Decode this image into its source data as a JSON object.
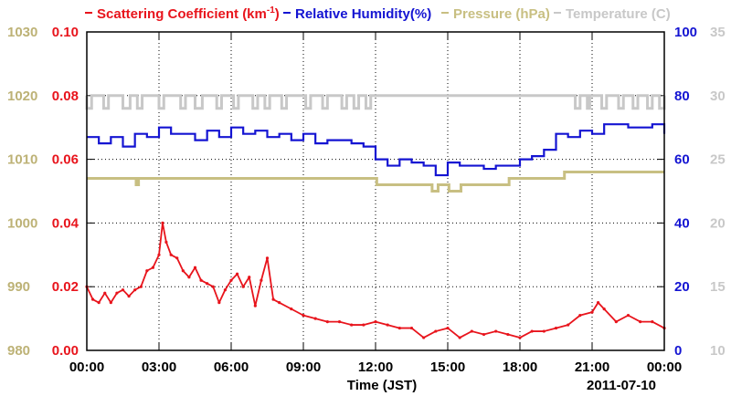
{
  "chart_data": {
    "type": "line",
    "legend": [
      {
        "label_main": "Scattering Coefficient (km",
        "label_sup": "-1",
        "label_end": ")",
        "color": "#e8141c"
      },
      {
        "label_main": "Relative Humidity(%)",
        "color": "#1414d2"
      },
      {
        "label_main": "Pressure (hPa)",
        "color": "#c8bf82"
      },
      {
        "label_main": "Temperature (C)",
        "color": "#c8c8c8"
      }
    ],
    "x_axis": {
      "label": "Time (JST)",
      "date_label": "2011-07-10",
      "range_hours": [
        0,
        24
      ],
      "ticks": [
        "00:00",
        "03:00",
        "06:00",
        "09:00",
        "12:00",
        "15:00",
        "18:00",
        "21:00",
        "00:00"
      ]
    },
    "axes": {
      "pressure": {
        "unit": "hPa",
        "range": [
          980,
          1030
        ],
        "ticks": [
          "980",
          "990",
          "1000",
          "1010",
          "1020",
          "1030"
        ],
        "color": "#bdb276"
      },
      "scattering": {
        "unit": "km-1",
        "range": [
          0,
          0.1
        ],
        "ticks": [
          "0.00",
          "0.02",
          "0.04",
          "0.06",
          "0.08",
          "0.10"
        ],
        "color": "#e8141c"
      },
      "humidity": {
        "unit": "%",
        "range": [
          0,
          100
        ],
        "ticks": [
          "0",
          "20",
          "40",
          "60",
          "80",
          "100"
        ],
        "color": "#1414d2"
      },
      "temperature": {
        "unit": "C",
        "range": [
          10,
          35
        ],
        "ticks": [
          "10",
          "15",
          "20",
          "25",
          "30",
          "35"
        ],
        "color": "#c8c8c8"
      }
    },
    "series": [
      {
        "name": "Scattering Coefficient",
        "axis": "scattering",
        "color": "#e8141c",
        "x": [
          0,
          0.25,
          0.5,
          0.75,
          1.0,
          1.25,
          1.5,
          1.75,
          2.0,
          2.25,
          2.5,
          2.75,
          3.0,
          3.15,
          3.3,
          3.5,
          3.75,
          4.0,
          4.25,
          4.5,
          4.75,
          5.0,
          5.25,
          5.5,
          5.75,
          6.0,
          6.25,
          6.5,
          6.75,
          7.0,
          7.25,
          7.5,
          7.75,
          8.0,
          8.5,
          9.0,
          9.5,
          10.0,
          10.5,
          11.0,
          11.5,
          12.0,
          12.5,
          13.0,
          13.5,
          14.0,
          14.5,
          15.0,
          15.5,
          16.0,
          16.5,
          17.0,
          17.5,
          18.0,
          18.5,
          19.0,
          19.5,
          20.0,
          20.5,
          21.0,
          21.25,
          21.5,
          22.0,
          22.5,
          23.0,
          23.5,
          24.0
        ],
        "values": [
          0.02,
          0.016,
          0.015,
          0.018,
          0.015,
          0.018,
          0.019,
          0.017,
          0.019,
          0.02,
          0.025,
          0.026,
          0.03,
          0.04,
          0.034,
          0.03,
          0.029,
          0.025,
          0.023,
          0.026,
          0.022,
          0.021,
          0.02,
          0.015,
          0.019,
          0.022,
          0.024,
          0.02,
          0.023,
          0.014,
          0.022,
          0.029,
          0.016,
          0.015,
          0.013,
          0.011,
          0.01,
          0.009,
          0.009,
          0.008,
          0.008,
          0.009,
          0.008,
          0.007,
          0.007,
          0.004,
          0.006,
          0.007,
          0.004,
          0.006,
          0.005,
          0.006,
          0.005,
          0.004,
          0.006,
          0.006,
          0.007,
          0.008,
          0.011,
          0.012,
          0.015,
          0.013,
          0.009,
          0.011,
          0.009,
          0.009,
          0.007
        ]
      },
      {
        "name": "Relative Humidity",
        "axis": "humidity",
        "color": "#1414d2",
        "x": [
          0,
          0.5,
          1.0,
          1.5,
          2.0,
          2.5,
          3.0,
          3.5,
          4.0,
          4.5,
          5.0,
          5.5,
          6.0,
          6.5,
          7.0,
          7.5,
          8.0,
          8.5,
          9.0,
          9.5,
          10.0,
          10.5,
          11.0,
          11.5,
          12.0,
          12.5,
          13.0,
          13.5,
          14.0,
          14.5,
          15.0,
          15.5,
          16.0,
          16.5,
          17.0,
          17.5,
          18.0,
          18.5,
          19.0,
          19.5,
          20.0,
          20.5,
          21.0,
          21.5,
          22.0,
          22.5,
          23.0,
          23.5,
          24.0
        ],
        "values": [
          67,
          65,
          67,
          64,
          68,
          67,
          70,
          68,
          68,
          66,
          69,
          67,
          70,
          68,
          69,
          67,
          68,
          66,
          68,
          65,
          66,
          66,
          65,
          64,
          60,
          58,
          60,
          59,
          58,
          55,
          59,
          58,
          58,
          57,
          58,
          58,
          60,
          61,
          63,
          68,
          67,
          69,
          68,
          71,
          71,
          70,
          70,
          71,
          68
        ]
      },
      {
        "name": "Pressure",
        "axis": "pressure",
        "color": "#c8bf82",
        "x": [
          0,
          2.0,
          2.05,
          2.15,
          12.0,
          12.05,
          14.3,
          14.35,
          14.55,
          14.6,
          15.0,
          15.05,
          15.5,
          15.55,
          17.5,
          17.55,
          19.8,
          19.85,
          24.0
        ],
        "values": [
          1007,
          1007,
          1006,
          1007,
          1007,
          1006,
          1006,
          1005,
          1005,
          1006,
          1006,
          1005,
          1005,
          1006,
          1006,
          1007,
          1007,
          1008,
          1008
        ]
      },
      {
        "name": "Temperature",
        "axis": "temperature",
        "color": "#c8c8c8",
        "x": [
          0,
          24.0
        ],
        "values": [
          30,
          30
        ],
        "dips_to": 29,
        "dip_windows_hours": [
          [
            0.0,
            0.2
          ],
          [
            0.7,
            0.9
          ],
          [
            1.5,
            1.8
          ],
          [
            2.1,
            2.3
          ],
          [
            3.0,
            3.2
          ],
          [
            3.9,
            4.1
          ],
          [
            4.5,
            4.8
          ],
          [
            5.4,
            5.6
          ],
          [
            6.1,
            6.3
          ],
          [
            6.9,
            7.1
          ],
          [
            7.4,
            7.6
          ],
          [
            8.1,
            8.3
          ],
          [
            9.1,
            9.3
          ],
          [
            9.8,
            10.0
          ],
          [
            10.6,
            10.8
          ],
          [
            11.1,
            11.3
          ],
          [
            11.6,
            11.8
          ],
          [
            20.3,
            20.5
          ],
          [
            20.8,
            20.9
          ],
          [
            21.4,
            21.6
          ],
          [
            22.1,
            22.3
          ],
          [
            22.7,
            22.9
          ],
          [
            23.3,
            23.5
          ],
          [
            23.8,
            24.0
          ]
        ]
      }
    ],
    "grid": true,
    "legend_position": "top"
  }
}
